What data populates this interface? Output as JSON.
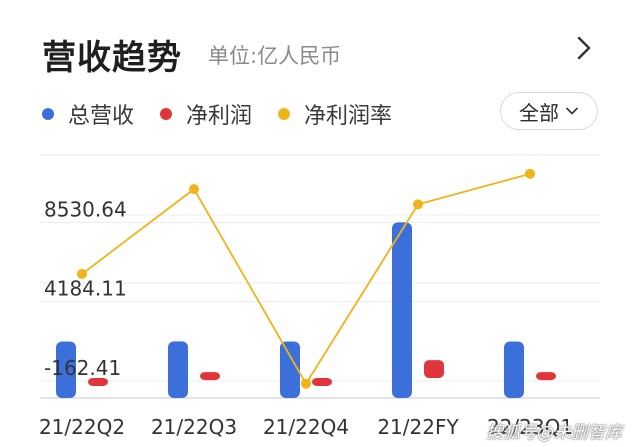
{
  "header": {
    "title": "营收趋势",
    "unit": "单位:亿人民币"
  },
  "legend": [
    {
      "label": "总营收",
      "color": "#3b6fd9"
    },
    {
      "label": "净利润",
      "color": "#e0353b"
    },
    {
      "label": "净利润率",
      "color": "#f0b418"
    }
  ],
  "filter": {
    "label": "全部"
  },
  "icons": {
    "more": "chevron-right-icon",
    "filter": "chevron-down-icon"
  },
  "watermark": "搜狐号@未删智库",
  "chart_data": {
    "type": "bar",
    "categories": [
      "21/22Q2",
      "21/22Q3",
      "21/22Q4",
      "21/22FY",
      "22/23Q1"
    ],
    "y_tick_labels": [
      "8530.64",
      "4184.11",
      "-162.41"
    ],
    "y_ticks": [
      8530.64,
      4184.11,
      -162.41
    ],
    "ylim": [
      -1100,
      12500
    ],
    "grid": true,
    "series": [
      {
        "name": "总营收",
        "type": "bar",
        "color": "#3b6fd9",
        "values": [
          2001,
          2007,
          2001,
          8530.64,
          2001
        ]
      },
      {
        "name": "净利润",
        "type": "bar",
        "color": "#e0353b",
        "values": [
          -70,
          320,
          -170,
          980,
          320
        ]
      },
      {
        "name": "净利润率",
        "type": "line",
        "color": "#f0b418",
        "values": [
          4.5,
          13.4,
          -7.0,
          11.8,
          15.0
        ],
        "ylim": [
          -8.5,
          17.5
        ]
      }
    ]
  }
}
